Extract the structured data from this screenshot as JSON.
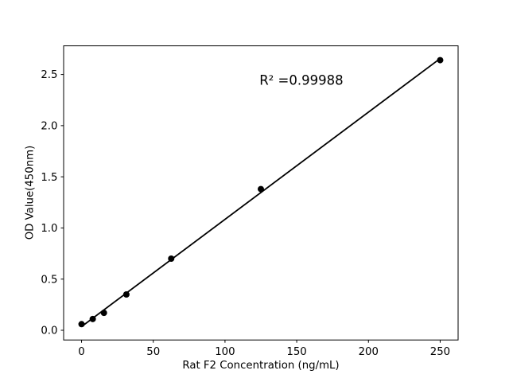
{
  "chart_data": {
    "type": "scatter",
    "title": "",
    "xlabel": "Rat F2 Concentration (ng/mL)",
    "ylabel": "OD Value(450nm)",
    "annotation": {
      "text": "R² =0.99988",
      "x": 124,
      "y": 2.4
    },
    "r_squared": 0.99988,
    "points": {
      "x": [
        0,
        7.8,
        15.6,
        31.25,
        62.5,
        125,
        250
      ],
      "y": [
        0.06,
        0.11,
        0.17,
        0.35,
        0.7,
        1.38,
        2.64
      ]
    },
    "fit_line": {
      "x": [
        0,
        250
      ],
      "y": [
        0.036,
        2.656
      ]
    },
    "xlim": [
      -12.5,
      262.5
    ],
    "ylim": [
      -0.095,
      2.78
    ],
    "xticks": [
      {
        "value": 0,
        "label": "0"
      },
      {
        "value": 50,
        "label": "50"
      },
      {
        "value": 100,
        "label": "100"
      },
      {
        "value": 150,
        "label": "150"
      },
      {
        "value": 200,
        "label": "200"
      },
      {
        "value": 250,
        "label": "250"
      }
    ],
    "yticks": [
      {
        "value": 0.0,
        "label": "0.0"
      },
      {
        "value": 0.5,
        "label": "0.5"
      },
      {
        "value": 1.0,
        "label": "1.0"
      },
      {
        "value": 1.5,
        "label": "1.5"
      },
      {
        "value": 2.0,
        "label": "2.0"
      },
      {
        "value": 2.5,
        "label": "2.5"
      }
    ],
    "grid": false,
    "legend_position": "none",
    "colors": {
      "marker": "#000000",
      "line": "#000000",
      "axis": "#000000",
      "text": "#000000",
      "background": "#ffffff"
    }
  }
}
